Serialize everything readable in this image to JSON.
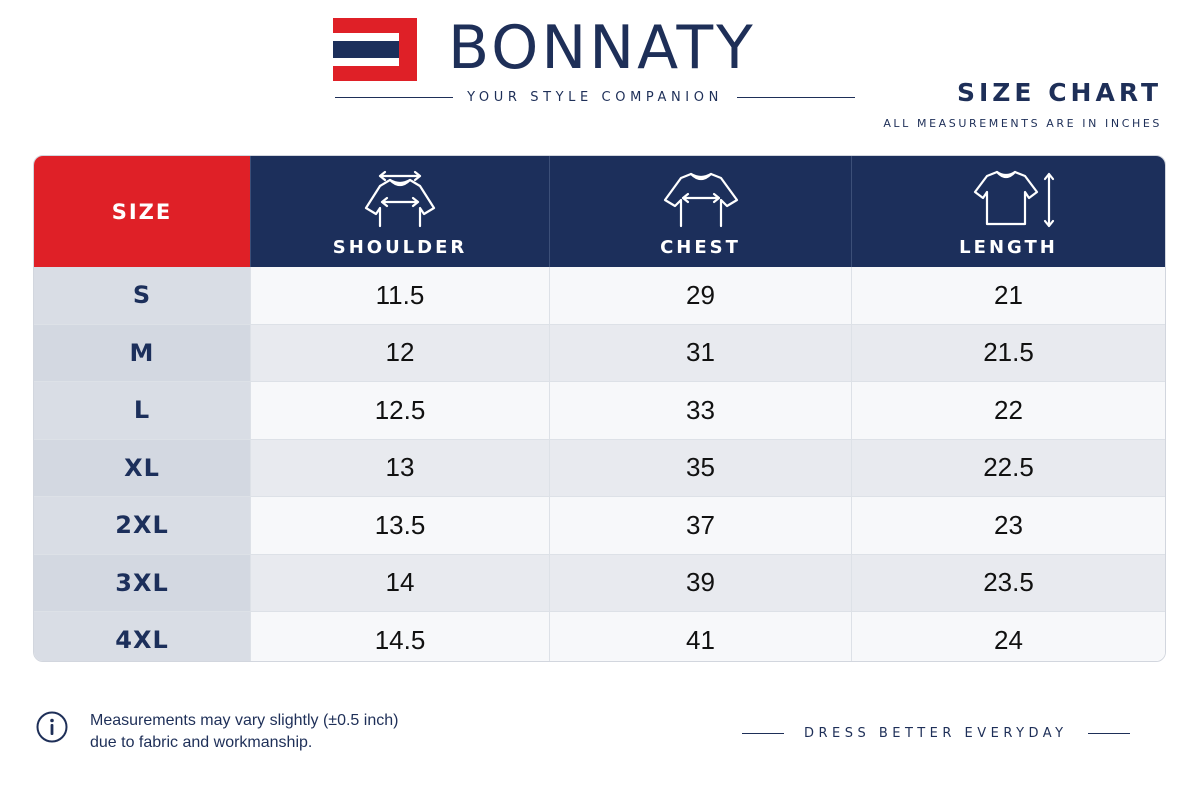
{
  "brand": {
    "name": "BONNATY",
    "tagline": "YOUR STYLE COMPANION",
    "colors": {
      "navy": "#1c2f5b",
      "red": "#df2027"
    }
  },
  "header": {
    "title": "SIZE CHART",
    "units_note": "ALL MEASUREMENTS ARE IN INCHES"
  },
  "table": {
    "headers": [
      {
        "label": "SIZE",
        "icon": ""
      },
      {
        "label": "SHOULDER",
        "icon": "shirt-shoulder-icon"
      },
      {
        "label": "CHEST",
        "icon": "shirt-chest-icon"
      },
      {
        "label": "LENGTH",
        "icon": "shirt-length-icon"
      }
    ],
    "rows": [
      {
        "size": "S",
        "shoulder": "11.5",
        "chest": "29",
        "length": "21"
      },
      {
        "size": "M",
        "shoulder": "12",
        "chest": "31",
        "length": "21.5"
      },
      {
        "size": "L",
        "shoulder": "12.5",
        "chest": "33",
        "length": "22"
      },
      {
        "size": "XL",
        "shoulder": "13",
        "chest": "35",
        "length": "22.5"
      },
      {
        "size": "2XL",
        "shoulder": "13.5",
        "chest": "37",
        "length": "23"
      },
      {
        "size": "3XL",
        "shoulder": "14",
        "chest": "39",
        "length": "23.5"
      },
      {
        "size": "4XL",
        "shoulder": "14.5",
        "chest": "41",
        "length": "24"
      }
    ]
  },
  "footer": {
    "icon": "info-icon",
    "disclaimer_line1": "Measurements may vary slightly (±0.5 inch)",
    "disclaimer_line2": "due to fabric and workmanship.",
    "slogan": "DRESS BETTER EVERYDAY"
  }
}
